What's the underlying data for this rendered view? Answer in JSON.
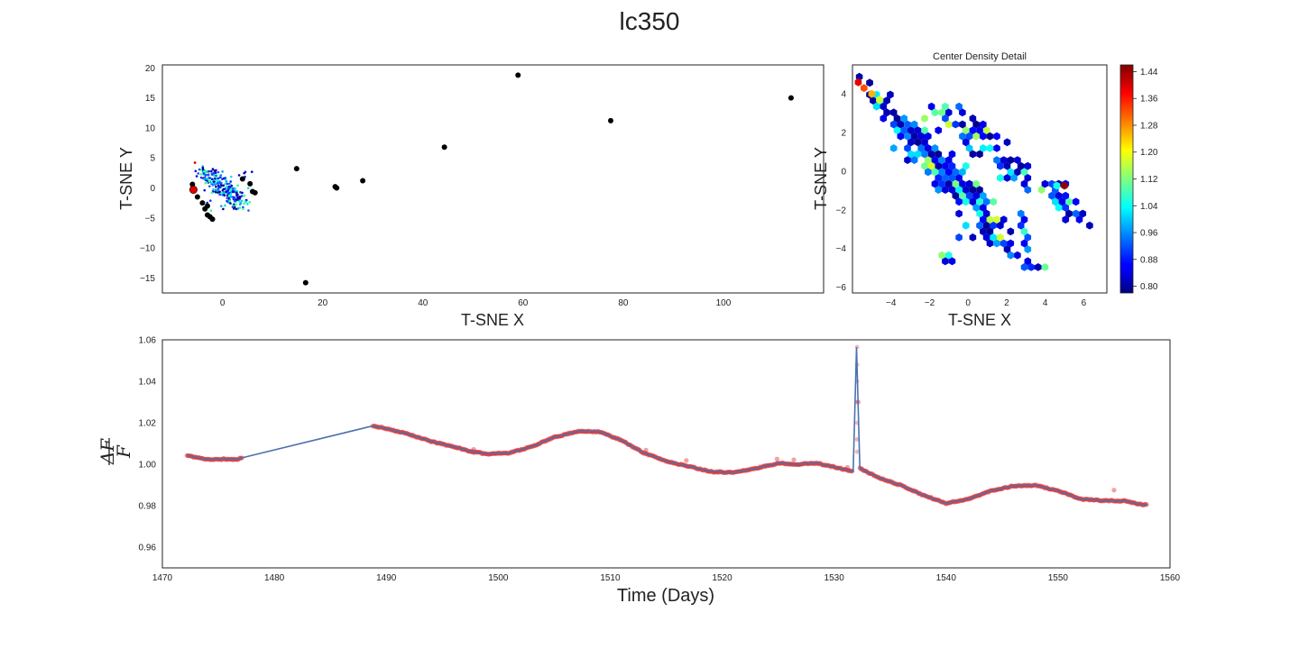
{
  "figure": {
    "title": "lc350"
  },
  "chart_data": [
    {
      "id": "tsne",
      "type": "scatter",
      "xlabel": "T-SNE X",
      "ylabel": "T-SNE Y",
      "xlim": [
        -12,
        120
      ],
      "ylim": [
        -17.5,
        20.5
      ],
      "xticks": [
        0,
        20,
        40,
        60,
        80,
        100
      ],
      "yticks": [
        -15,
        -10,
        -5,
        0,
        5,
        10,
        15,
        20
      ],
      "outliers": [
        [
          -6,
          0.6
        ],
        [
          -5,
          -1.5
        ],
        [
          -4,
          -2.5
        ],
        [
          -3.5,
          -3.5
        ],
        [
          -3,
          -4.5
        ],
        [
          -2.5,
          -4.8
        ],
        [
          -2,
          -5.2
        ],
        [
          -3,
          -3
        ],
        [
          4,
          1.5
        ],
        [
          5.5,
          0.7
        ],
        [
          6.5,
          -0.8
        ],
        [
          6,
          -0.6
        ],
        [
          14.8,
          3.2
        ],
        [
          16.6,
          -15.8
        ],
        [
          22.5,
          0.2
        ],
        [
          22.8,
          0
        ],
        [
          28,
          1.2
        ],
        [
          44.3,
          6.8
        ],
        [
          59,
          18.8
        ],
        [
          77.5,
          11.2
        ],
        [
          113.5,
          15
        ]
      ],
      "highlight": [
        -5.8,
        -0.3
      ],
      "colors": {
        "outlier": "#000000",
        "highlight": "#e00000"
      }
    },
    {
      "id": "hexbin",
      "type": "heatmap",
      "title": "Center Density Detail",
      "xlabel": "T-SNE X",
      "ylabel": "T-SNE Y",
      "xlim": [
        -6,
        7.2
      ],
      "ylim": [
        -6.3,
        5.5
      ],
      "xticks": [
        -4,
        -2,
        0,
        2,
        4,
        6
      ],
      "yticks": [
        -6,
        -4,
        -2,
        0,
        2,
        4
      ],
      "colorbar": {
        "min": 0.78,
        "max": 1.46,
        "ticks": [
          0.8,
          0.88,
          0.96,
          1.04,
          1.12,
          1.2,
          1.28,
          1.36,
          1.44
        ]
      }
    },
    {
      "id": "lightcurve",
      "type": "line",
      "xlabel": "Time (Days)",
      "ylabel": "ΔF/F",
      "xlim": [
        1470,
        1560
      ],
      "ylim": [
        0.95,
        1.06
      ],
      "xticks": [
        1470,
        1480,
        1490,
        1500,
        1510,
        1520,
        1530,
        1540,
        1550,
        1560
      ],
      "yticks": [
        0.96,
        0.98,
        1.0,
        1.02,
        1.04,
        1.06
      ],
      "segments": [
        [
          [
            1472.2,
            1.0042
          ],
          [
            1473.5,
            1.0028
          ],
          [
            1474.5,
            1.0022
          ],
          [
            1475.5,
            1.0025
          ],
          [
            1476.5,
            1.0022
          ],
          [
            1477.2,
            1.0032
          ]
        ],
        [
          [
            1488.8,
            1.0185
          ],
          [
            1490,
            1.0172
          ],
          [
            1492,
            1.0145
          ],
          [
            1494,
            1.011
          ],
          [
            1496,
            1.0085
          ],
          [
            1497.5,
            1.0062
          ],
          [
            1499,
            1.005
          ],
          [
            1501,
            1.0055
          ],
          [
            1503,
            1.0085
          ],
          [
            1505,
            1.013
          ],
          [
            1507,
            1.0158
          ],
          [
            1509,
            1.0158
          ],
          [
            1511,
            1.0115
          ],
          [
            1513,
            1.0055
          ],
          [
            1515,
            1.0015
          ],
          [
            1517,
            0.999
          ],
          [
            1519,
            0.9965
          ],
          [
            1521,
            0.996
          ],
          [
            1523,
            0.998
          ],
          [
            1525,
            1.0005
          ],
          [
            1526.5,
            1.0
          ],
          [
            1528.5,
            1.0005
          ],
          [
            1530.5,
            0.998
          ],
          [
            1531.7,
            0.9965
          ]
        ],
        [
          [
            1532.0,
            1.0565
          ]
        ],
        [
          [
            1532.3,
            0.998
          ],
          [
            1534,
            0.9935
          ],
          [
            1536,
            0.9898
          ],
          [
            1538,
            0.985
          ],
          [
            1540,
            0.9812
          ],
          [
            1542,
            0.9832
          ],
          [
            1544,
            0.9872
          ],
          [
            1546,
            0.9895
          ],
          [
            1548,
            0.9898
          ],
          [
            1550,
            0.9872
          ],
          [
            1552,
            0.9832
          ],
          [
            1554,
            0.9825
          ],
          [
            1556,
            0.9822
          ],
          [
            1557.5,
            0.9805
          ],
          [
            1558,
            0.9805
          ]
        ]
      ],
      "spikes": [
        [
          1497.8,
          1.0072
        ],
        [
          1513.2,
          1.0068
        ],
        [
          1516.8,
          1.0018
        ],
        [
          1524.9,
          1.0025
        ],
        [
          1526.4,
          1.0022
        ],
        [
          1531.2,
          0.9985
        ],
        [
          1555.0,
          0.9875
        ],
        [
          1532.15,
          1.03
        ]
      ],
      "colors": {
        "line": "#4c72b0",
        "marker": "#e03030"
      }
    }
  ]
}
